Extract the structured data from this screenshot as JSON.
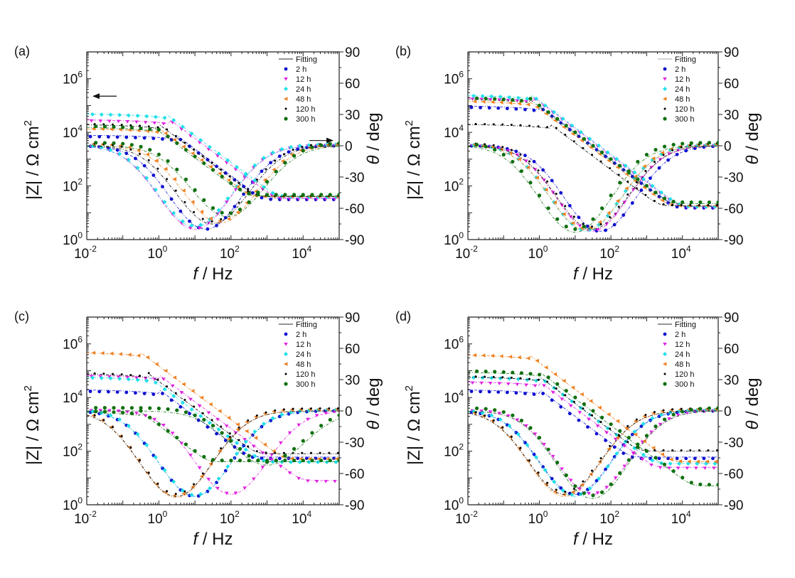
{
  "chart_data": [
    {
      "type": "scatter",
      "panel": "(a)",
      "title": "",
      "xlabel": "f / Hz",
      "ylabel": "|Z| / Ω cm²",
      "y2label": "θ / deg",
      "xscale": "log",
      "xlim": [
        0.01,
        100000
      ],
      "yscale": "log",
      "ylim": [
        1,
        10000000
      ],
      "y2lim": [
        -90,
        90
      ],
      "xticks": [
        "10-2",
        "100",
        "102",
        "104"
      ],
      "yticks": [
        "100",
        "102",
        "104",
        "106"
      ],
      "y2ticks": [
        "90",
        "60",
        "30",
        "0",
        "-30",
        "-60",
        "-90"
      ],
      "legend": [
        "Fitting",
        "2 h",
        "12 h",
        "24 h",
        "48 h",
        "120 h",
        "300 h"
      ],
      "legend_position": "top-right",
      "arrows": [
        "left: |Z| axis",
        "right: θ axis"
      ],
      "series": [
        {
          "name": "2 h",
          "z_low": 8000,
          "z_mid_f": 3,
          "z_high": 35,
          "phase_min": -80,
          "phase_min_f": 20
        },
        {
          "name": "12 h",
          "z_low": 30000,
          "z_mid_f": 2,
          "z_high": 35,
          "phase_min": -80,
          "phase_min_f": 10
        },
        {
          "name": "24 h",
          "z_low": 50000,
          "z_mid_f": 1.5,
          "z_high": 40,
          "phase_min": -78,
          "phase_min_f": 10
        },
        {
          "name": "48 h",
          "z_low": 14000,
          "z_mid_f": 1,
          "z_high": 40,
          "phase_min": -74,
          "phase_min_f": 50
        },
        {
          "name": "120 h",
          "z_low": 20000,
          "z_mid_f": 1,
          "z_high": 40,
          "phase_min": -75,
          "phase_min_f": 30
        },
        {
          "name": "300 h",
          "z_low": 16000,
          "z_mid_f": 0.7,
          "z_high": 42,
          "phase_min": -68,
          "phase_min_f": 80
        }
      ]
    },
    {
      "type": "scatter",
      "panel": "(b)",
      "xlabel": "f / Hz",
      "ylabel": "|Z| / Ω cm²",
      "y2label": "θ / deg",
      "xscale": "log",
      "xlim": [
        0.01,
        100000
      ],
      "yscale": "log",
      "ylim": [
        1,
        10000000
      ],
      "y2lim": [
        -90,
        90
      ],
      "xticks": [
        "10-2",
        "100",
        "102",
        "104"
      ],
      "yticks": [
        "100",
        "102",
        "104",
        "106"
      ],
      "y2ticks": [
        "90",
        "60",
        "30",
        "0",
        "-30",
        "-60",
        "-90"
      ],
      "legend": [
        "Fitting",
        "2 h",
        "12 h",
        "24 h",
        "48 h",
        "120 h",
        "300 h"
      ],
      "legend_position": "top-right",
      "series": [
        {
          "name": "2 h",
          "z_low": 100000,
          "z_mid_f": 1,
          "z_high": 17,
          "phase_min": -82,
          "phase_min_f": 50
        },
        {
          "name": "12 h",
          "z_low": 200000,
          "z_mid_f": 0.7,
          "z_high": 17,
          "phase_min": -82,
          "phase_min_f": 30
        },
        {
          "name": "24 h",
          "z_low": 250000,
          "z_mid_f": 0.6,
          "z_high": 17,
          "phase_min": -82,
          "phase_min_f": 20
        },
        {
          "name": "48 h",
          "z_low": 150000,
          "z_mid_f": 0.5,
          "z_high": 18,
          "phase_min": -81,
          "phase_min_f": 20
        },
        {
          "name": "120 h",
          "z_low": 20000,
          "z_mid_f": 2,
          "z_high": 18,
          "phase_min": -80,
          "phase_min_f": 30
        },
        {
          "name": "300 h",
          "z_low": 180000,
          "z_mid_f": 0.5,
          "z_high": 22,
          "phase_min": -83,
          "phase_min_f": 10
        }
      ]
    },
    {
      "type": "scatter",
      "panel": "(c)",
      "xlabel": "f / Hz",
      "ylabel": "|Z| / Ω cm²",
      "y2label": "θ / deg",
      "xscale": "log",
      "xlim": [
        0.01,
        100000
      ],
      "yscale": "log",
      "ylim": [
        1,
        10000000
      ],
      "y2lim": [
        -90,
        90
      ],
      "xticks": [
        "10-2",
        "100",
        "102",
        "104"
      ],
      "yticks": [
        "100",
        "102",
        "104",
        "106"
      ],
      "y2ticks": [
        "90",
        "60",
        "30",
        "0",
        "-30",
        "-60",
        "-90"
      ],
      "legend": [
        "Fitting",
        "2 h",
        "12 h",
        "24 h",
        "48 h",
        "120 h",
        "300 h"
      ],
      "legend_position": "top-right",
      "series": [
        {
          "name": "2 h",
          "z_low": 20000,
          "z_mid_f": 1,
          "z_high": 60,
          "phase_min": -82,
          "phase_min_f": 10
        },
        {
          "name": "12 h",
          "z_low": 70000,
          "z_mid_f": 1,
          "z_high": 8,
          "phase_min": -80,
          "phase_min_f": 100
        },
        {
          "name": "24 h",
          "z_low": 60000,
          "z_mid_f": 0.5,
          "z_high": 40,
          "phase_min": -82,
          "phase_min_f": 10
        },
        {
          "name": "48 h",
          "z_low": 500000,
          "z_mid_f": 0.3,
          "z_high": 50,
          "phase_min": -83,
          "phase_min_f": 3
        },
        {
          "name": "120 h",
          "z_low": 80000,
          "z_mid_f": 0.5,
          "z_high": 80,
          "phase_min": -82,
          "phase_min_f": 3
        },
        {
          "name": "300 h",
          "z_low": 3000,
          "z_mid_f": 0.3,
          "z_high": 40,
          "phase_min": -52,
          "phase_min_f": 1000
        }
      ]
    },
    {
      "type": "scatter",
      "panel": "(d)",
      "xlabel": "f / Hz",
      "ylabel": "|Z| / Ω cm²",
      "y2label": "θ / deg",
      "xscale": "log",
      "xlim": [
        0.01,
        100000
      ],
      "yscale": "log",
      "ylim": [
        1,
        10000000
      ],
      "y2lim": [
        -90,
        90
      ],
      "xticks": [
        "10-2",
        "100",
        "102",
        "104"
      ],
      "yticks": [
        "100",
        "102",
        "104",
        "106"
      ],
      "y2ticks": [
        "90",
        "60",
        "30",
        "0",
        "-30",
        "-60",
        "-90"
      ],
      "legend": [
        "Fitting",
        "2 h",
        "12 h",
        "24 h",
        "48 h",
        "120 h",
        "300 h"
      ],
      "legend_position": "top-right",
      "series": [
        {
          "name": "2 h",
          "z_low": 20000,
          "z_mid_f": 1,
          "z_high": 60,
          "phase_min": -80,
          "phase_min_f": 10
        },
        {
          "name": "12 h",
          "z_low": 40000,
          "z_mid_f": 1,
          "z_high": 25,
          "phase_min": -80,
          "phase_min_f": 30
        },
        {
          "name": "24 h",
          "z_low": 60000,
          "z_mid_f": 1,
          "z_high": 35,
          "phase_min": -82,
          "phase_min_f": 10
        },
        {
          "name": "48 h",
          "z_low": 400000,
          "z_mid_f": 0.5,
          "z_high": 40,
          "phase_min": -82,
          "phase_min_f": 5
        },
        {
          "name": "120 h",
          "z_low": 60000,
          "z_mid_f": 1,
          "z_high": 100,
          "phase_min": -80,
          "phase_min_f": 5
        },
        {
          "name": "300 h",
          "z_low": 90000,
          "z_mid_f": 1,
          "z_high": 5,
          "phase_min": -84,
          "phase_min_f": 30
        }
      ]
    }
  ],
  "colors": {
    "2 h": "#1010d0",
    "12 h": "#e020e0",
    "24 h": "#20e0e8",
    "48 h": "#f08020",
    "120 h": "#000000",
    "300 h": "#107010",
    "Fitting": "#555555"
  }
}
